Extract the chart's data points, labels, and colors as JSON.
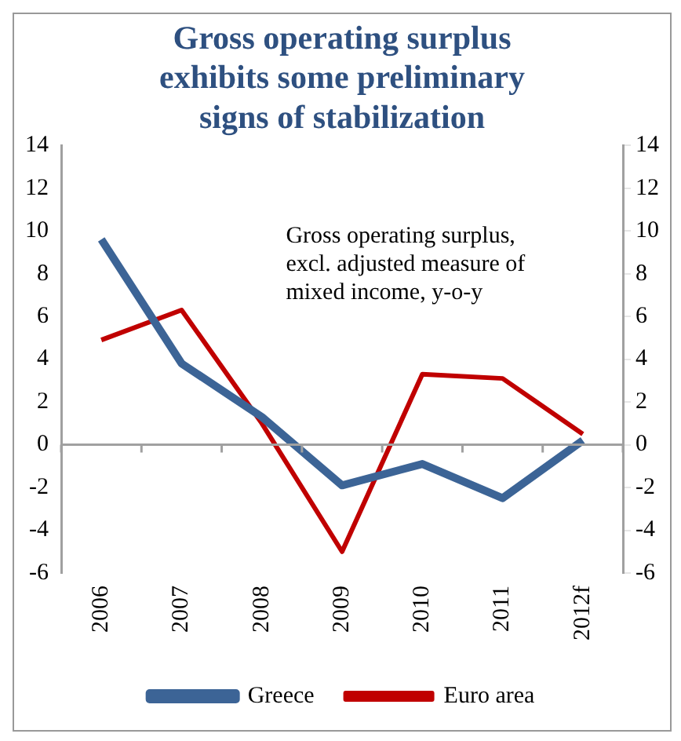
{
  "chart_data": {
    "type": "line",
    "title": "Gross operating surplus exhibits some preliminary signs of stabilization",
    "categories": [
      "2006",
      "2007",
      "2008",
      "2009",
      "2010",
      "2011",
      "2012f"
    ],
    "series": [
      {
        "name": "Greece",
        "color": "#3c6496",
        "values": [
          9.6,
          3.8,
          1.3,
          -1.9,
          -0.9,
          -2.5,
          0.2
        ]
      },
      {
        "name": "Euro area",
        "color": "#c00000",
        "values": [
          4.9,
          6.3,
          1.0,
          -5.0,
          3.3,
          3.1,
          0.5
        ]
      }
    ],
    "ylim": [
      -6,
      14
    ],
    "yticks": [
      -6,
      -4,
      -2,
      0,
      2,
      4,
      6,
      8,
      10,
      12,
      14
    ],
    "y2lim": [
      -6,
      14
    ],
    "y2ticks": [
      -6,
      -4,
      -2,
      0,
      2,
      4,
      6,
      8,
      10,
      12,
      14
    ],
    "annotations": [
      "Gross operating surplus, excl. adjusted measure of mixed income, y-o-y"
    ],
    "legend": "bottom",
    "marker": "none",
    "line_style": "solid"
  }
}
